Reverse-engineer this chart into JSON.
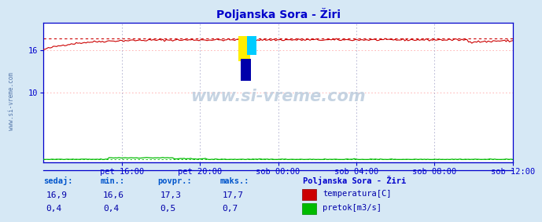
{
  "title": "Poljanska Sora - Žiri",
  "bg_color": "#d6e8f5",
  "plot_bg_color": "#ffffff",
  "temp_color": "#cc0000",
  "flow_color": "#00bb00",
  "temp_min": 16.6,
  "temp_max": 17.7,
  "temp_avg": 17.3,
  "temp_current": 16.9,
  "flow_min": 0.4,
  "flow_max": 0.7,
  "flow_avg": 0.5,
  "flow_current": 0.4,
  "ylim_min": 0,
  "ylim_max": 20,
  "x_labels": [
    "pet 16:00",
    "pet 20:00",
    "sob 00:00",
    "sob 04:00",
    "sob 08:00",
    "sob 12:00"
  ],
  "n_points": 288,
  "watermark": "www.si-vreme.com",
  "label_color": "#0000cc",
  "title_color": "#0000cc",
  "legend_title": "Poljanska Sora - Žiri",
  "legend_title_color": "#0000cc",
  "legend_temp_label": "temperatura[C]",
  "legend_flow_label": "pretok[m3/s]",
  "footer_headers": [
    "sedaj:",
    "min.:",
    "povpr.:",
    "maks.:"
  ],
  "footer_temp_vals": [
    "16,9",
    "16,6",
    "17,3",
    "17,7"
  ],
  "footer_flow_vals": [
    "0,4",
    "0,4",
    "0,5",
    "0,7"
  ],
  "grid_h_color": "#ffaaaa",
  "grid_v_color": "#aaaacc",
  "spine_color": "#0000cc",
  "separator_color": "#0000cc",
  "watermark_color": "#bbccdd",
  "side_label_color": "#5577aa"
}
